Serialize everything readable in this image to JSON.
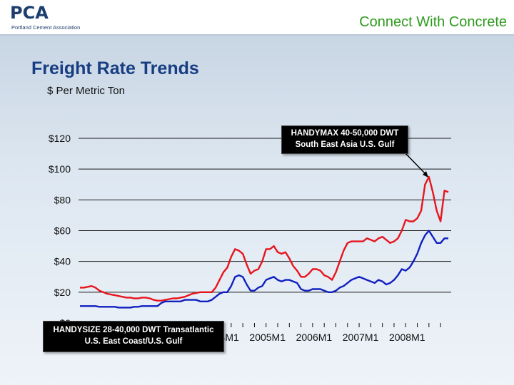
{
  "header": {
    "logo_text": "PCA",
    "logo_subtext": "Portland Cement Association",
    "tagline": "Connect With Concrete"
  },
  "slide": {
    "title": "Freight Rate Trends",
    "subtitle": "$ Per Metric Ton"
  },
  "callouts": {
    "handymax": {
      "line1": "HANDYMAX 40-50,000 DWT",
      "line2": "South East Asia U.S. Gulf"
    },
    "handysize": {
      "line1": "HANDYSIZE 28-40,000 DWT Transatlantic",
      "line2": "U.S. East Coast/U.S. Gulf"
    }
  },
  "chart_data": {
    "type": "line",
    "title": "Freight Rate Trends",
    "ylabel": "$ Per Metric Ton",
    "ylim": [
      0,
      120
    ],
    "y_ticks": [
      0,
      20,
      40,
      60,
      80,
      100,
      120
    ],
    "y_tick_labels": [
      "$0",
      "$20",
      "$40",
      "$60",
      "$80",
      "$100",
      "$120"
    ],
    "grid": true,
    "x_tick_labels": [
      "2004M1",
      "2005M1",
      "2006M1",
      "2007M1",
      "2008M1"
    ],
    "x_start": "2001M1",
    "frequency": "monthly",
    "colors": {
      "handymax": "#e8141c",
      "handysize": "#1020c0",
      "grid": "#1a1a1a"
    },
    "series": [
      {
        "name": "HANDYMAX 40-50,000 DWT South East Asia U.S. Gulf",
        "values": [
          23,
          23,
          23.5,
          24,
          23,
          21,
          20,
          19,
          18.5,
          18,
          17.5,
          17,
          16.5,
          16.5,
          16,
          16,
          16.5,
          16.5,
          16,
          15,
          14.5,
          14.5,
          15,
          15.5,
          16,
          16,
          16.5,
          17,
          18,
          19,
          19.5,
          20,
          20,
          20,
          20,
          23,
          28,
          33,
          36,
          43,
          48,
          47,
          45,
          38,
          32,
          34,
          35,
          40,
          48,
          48,
          50,
          46,
          45,
          46,
          42,
          37,
          34,
          30,
          30,
          32,
          35,
          35,
          34,
          31,
          30,
          28,
          33,
          40,
          47,
          52,
          53,
          53,
          53,
          53,
          55,
          54,
          53,
          55,
          56,
          54,
          52,
          53,
          55,
          60,
          67,
          66,
          66,
          68,
          73,
          90,
          95,
          85,
          73,
          66,
          86,
          85
        ]
      },
      {
        "name": "HANDYSIZE 28-40,000 DWT Transatlantic U.S. East Coast/U.S. Gulf",
        "values": [
          11,
          11,
          11,
          11,
          11,
          10.5,
          10.5,
          10.5,
          10.5,
          10.5,
          10,
          10,
          10,
          10,
          10.5,
          10.5,
          11,
          11,
          11,
          11,
          11,
          13,
          14,
          14,
          14,
          14,
          14,
          15,
          15,
          15,
          15,
          14,
          14,
          14,
          15,
          17,
          19,
          20,
          20,
          24,
          30,
          31,
          30,
          25,
          21,
          21,
          23,
          24,
          28,
          29,
          30,
          28,
          27,
          28,
          28,
          27,
          26,
          22,
          21,
          21,
          22,
          22,
          22,
          21,
          20,
          20,
          21,
          23,
          24,
          26,
          28,
          29,
          30,
          29,
          28,
          27,
          26,
          28,
          27,
          25,
          26,
          28,
          31,
          35,
          34,
          36,
          40,
          45,
          52,
          57,
          60,
          56,
          52,
          52,
          55,
          55
        ]
      }
    ]
  }
}
